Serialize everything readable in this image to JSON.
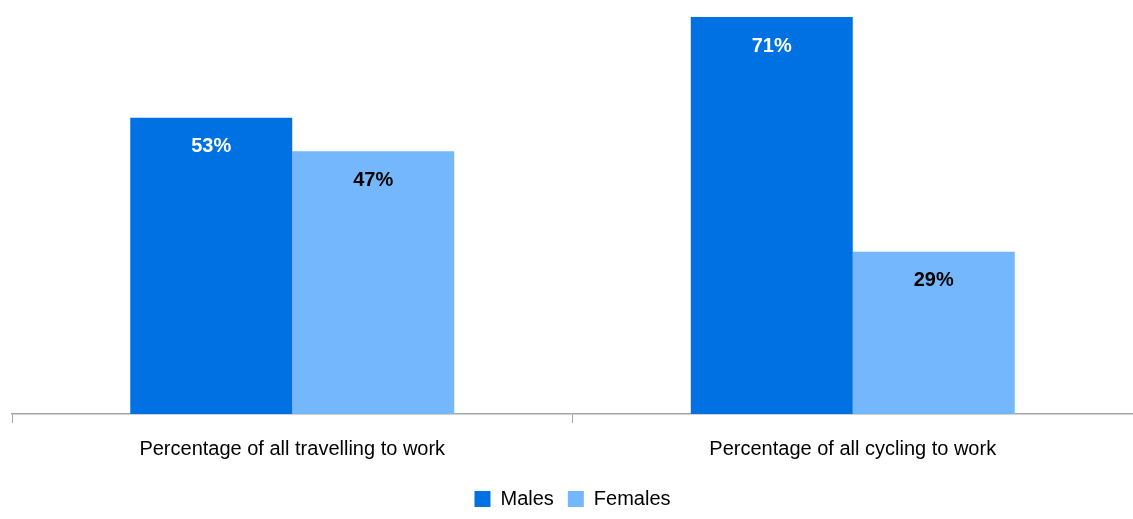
{
  "chart_data": {
    "type": "bar",
    "categories": [
      "Percentage of all travelling to work",
      "Percentage of all cycling to work"
    ],
    "series": [
      {
        "name": "Males",
        "color": "#0071e3",
        "values": [
          53,
          71
        ],
        "value_labels": [
          "53%",
          "71%"
        ]
      },
      {
        "name": "Females",
        "color": "#74b7fd",
        "values": [
          47,
          29
        ],
        "value_labels": [
          "47%",
          "29%"
        ]
      }
    ],
    "legend": "bottom"
  }
}
